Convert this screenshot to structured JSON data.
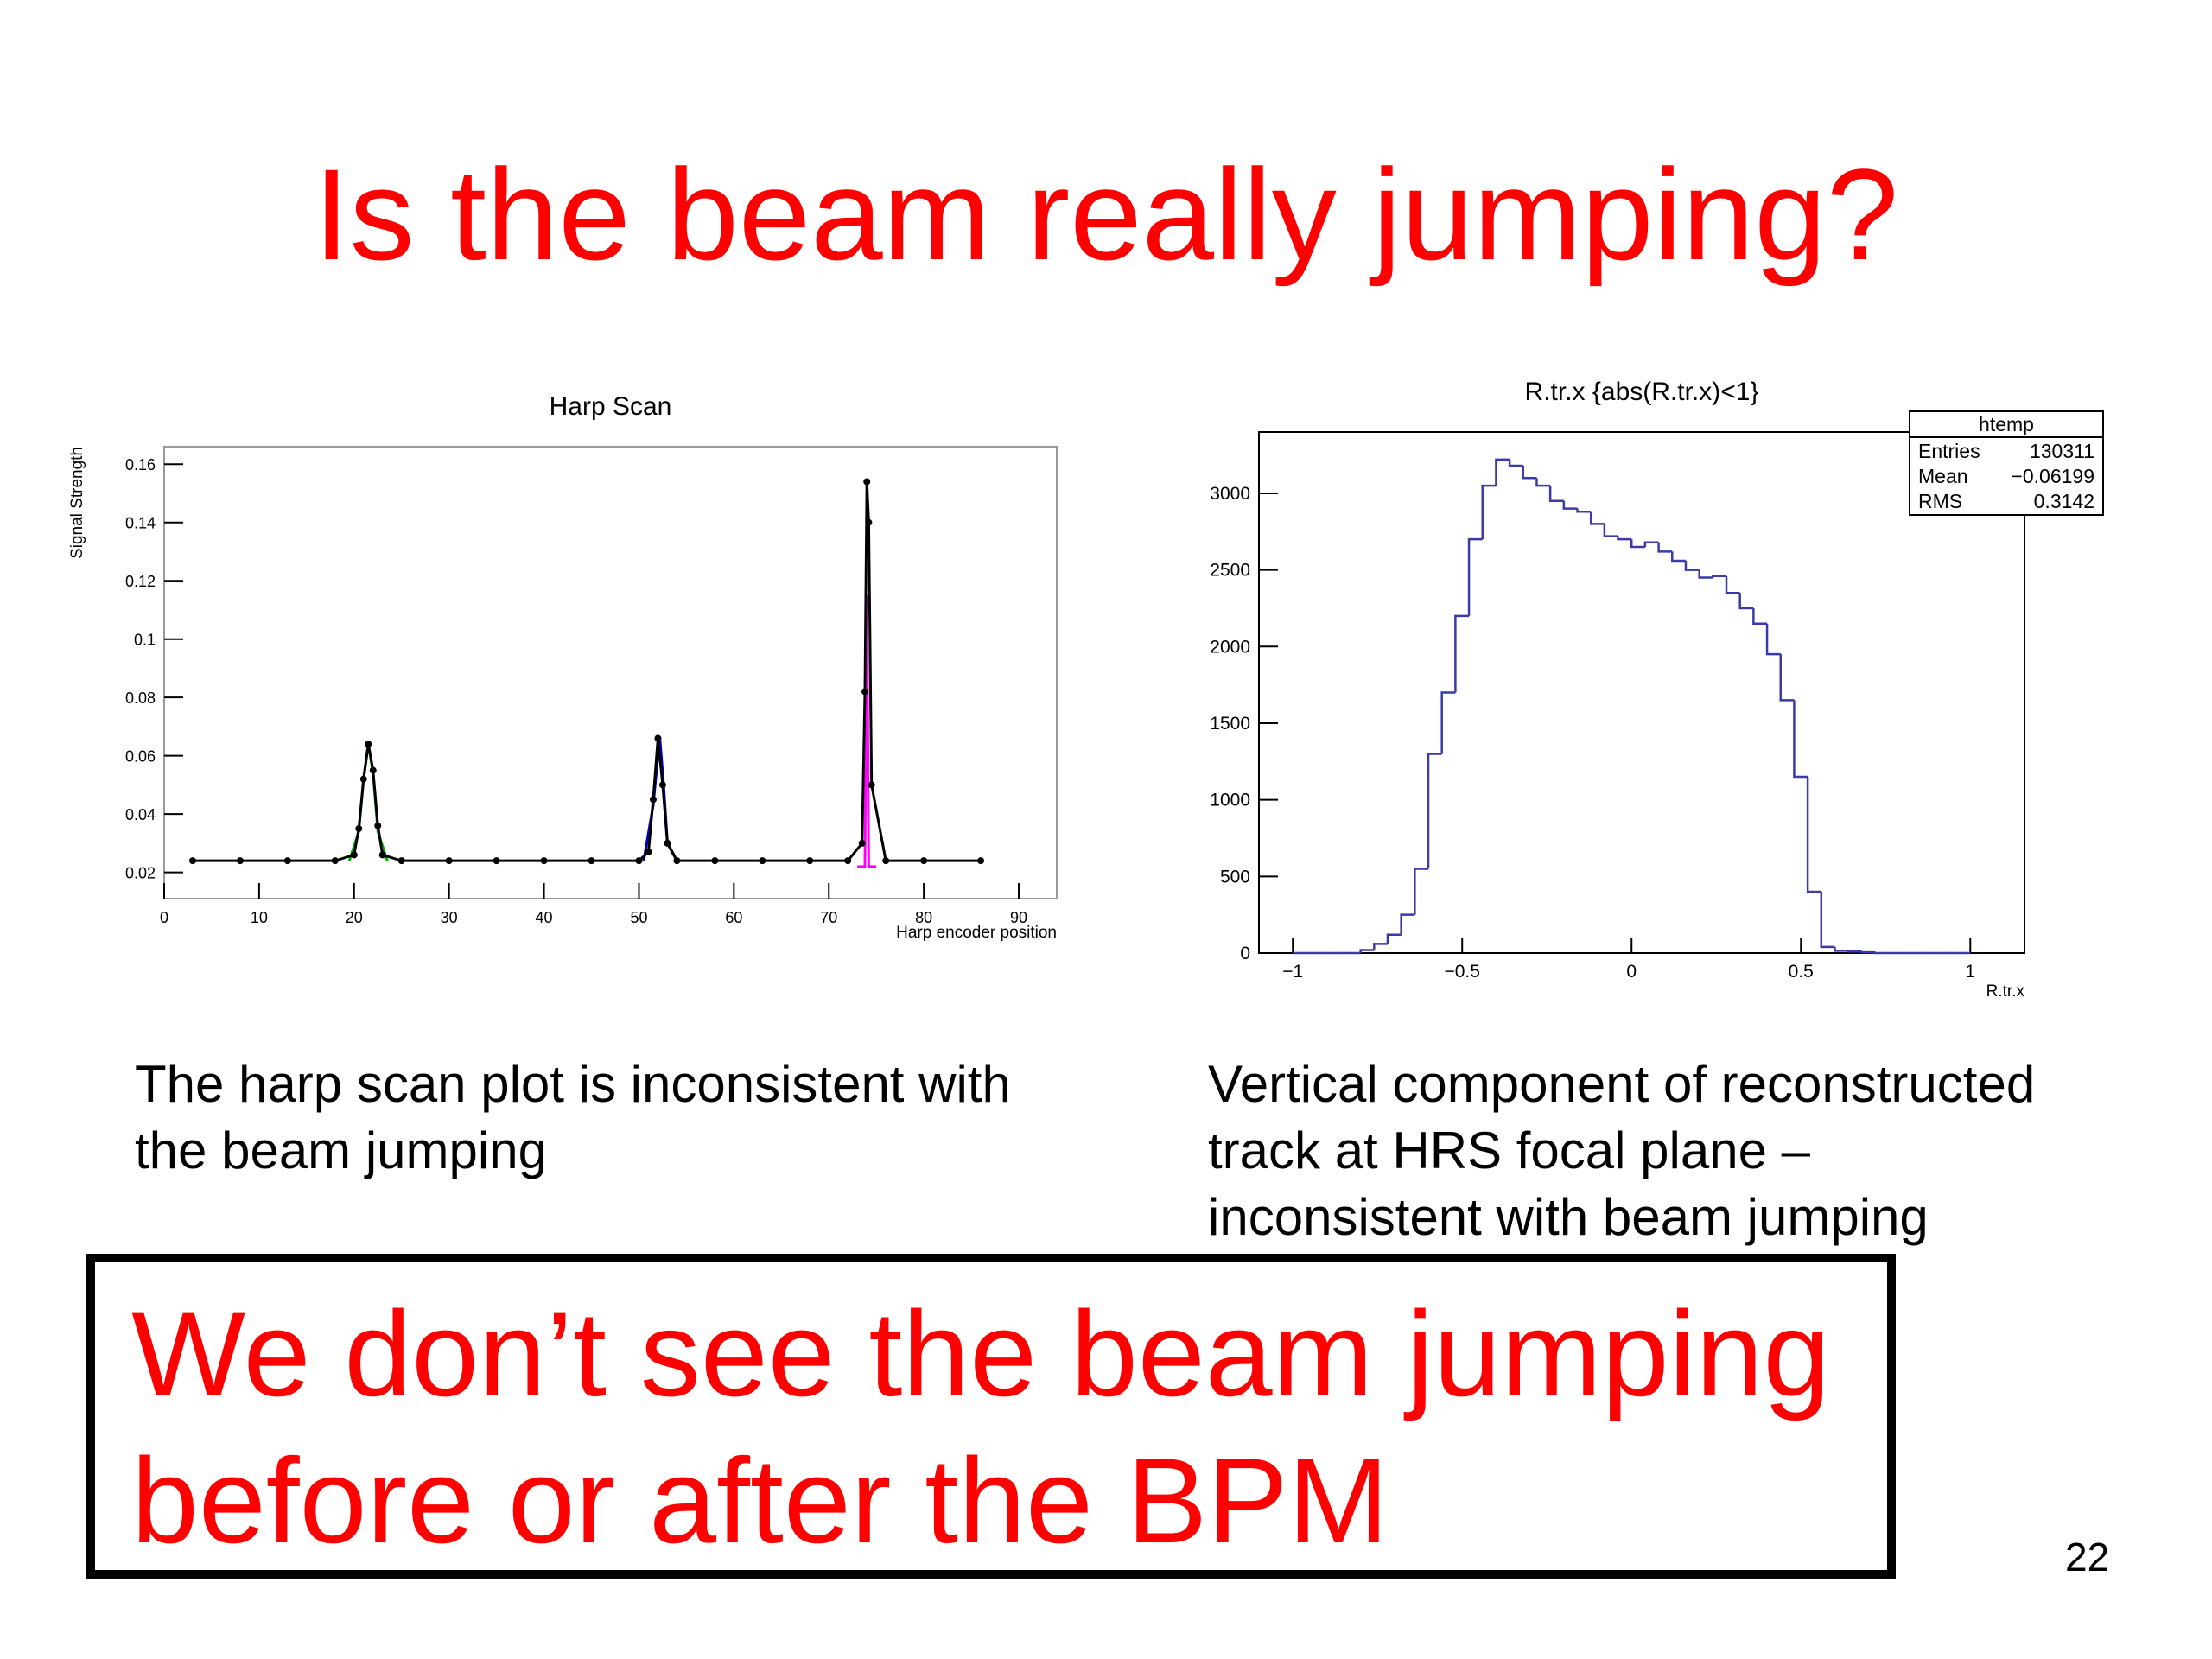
{
  "title": "Is the beam really jumping?",
  "chart_data": [
    {
      "type": "scatter",
      "title": "Harp Scan",
      "x_label": "Harp encoder position",
      "y_label": "Signal Strength",
      "xlim": [
        0,
        94
      ],
      "ylim": [
        0.011,
        0.166
      ],
      "xticks": [
        0,
        10,
        20,
        30,
        40,
        50,
        60,
        70,
        80,
        90
      ],
      "yticks": [
        0.02,
        0.04,
        0.06,
        0.08,
        0.1,
        0.12,
        0.14,
        0.16
      ],
      "grid": false,
      "series": [
        {
          "color": "#00b000",
          "x": [
            19.5,
            20.5,
            21,
            21.5,
            22,
            22.5,
            23.5
          ],
          "values": [
            0.024,
            0.034,
            0.052,
            0.064,
            0.054,
            0.034,
            0.024
          ]
        },
        {
          "color": "#0000c0",
          "x": [
            50.5,
            51.5,
            52,
            52.2,
            52.6,
            53,
            54
          ],
          "values": [
            0.024,
            0.043,
            0.06,
            0.066,
            0.05,
            0.03,
            0.024
          ]
        },
        {
          "color": "#ff00ff",
          "x": [
            73,
            73.8,
            74,
            74.2,
            75
          ],
          "values": [
            0.022,
            0.022,
            0.115,
            0.022,
            0.022
          ]
        },
        {
          "color": "#000000",
          "x": [
            3,
            8,
            13,
            18,
            20,
            20.5,
            21,
            21.5,
            22,
            22.5,
            23,
            25,
            30,
            35,
            40,
            45,
            50,
            51,
            51.5,
            52,
            52.5,
            53,
            54,
            58,
            63,
            68,
            72,
            73.5,
            73.8,
            74,
            74.2,
            74.5,
            76,
            80,
            86
          ],
          "values": [
            0.024,
            0.024,
            0.024,
            0.024,
            0.026,
            0.035,
            0.052,
            0.064,
            0.055,
            0.036,
            0.026,
            0.024,
            0.024,
            0.024,
            0.024,
            0.024,
            0.024,
            0.027,
            0.045,
            0.066,
            0.05,
            0.03,
            0.024,
            0.024,
            0.024,
            0.024,
            0.024,
            0.03,
            0.082,
            0.154,
            0.14,
            0.05,
            0.024,
            0.024,
            0.024
          ]
        }
      ]
    },
    {
      "type": "histogram",
      "title": "R.tr.x {abs(R.tr.x)<1}",
      "x_label": "R.tr.x",
      "color": "#3a3aa8",
      "xlim": [
        -1.1,
        1.16
      ],
      "ylim": [
        0,
        3400
      ],
      "xticks": [
        {
          "value": -1,
          "label": "−1"
        },
        {
          "value": -0.5,
          "label": "−0.5"
        },
        0,
        0.5,
        1
      ],
      "yticks": [
        0,
        500,
        1000,
        1500,
        2000,
        2500,
        3000
      ],
      "bins": [
        -1,
        -0.96,
        -0.92,
        -0.88,
        -0.84,
        -0.8,
        -0.76,
        -0.72,
        -0.68,
        -0.64,
        -0.6,
        -0.56,
        -0.52,
        -0.48,
        -0.44,
        -0.4,
        -0.36,
        -0.32,
        -0.28,
        -0.24,
        -0.2,
        -0.16,
        -0.12,
        -0.08,
        -0.04,
        0,
        0.04,
        0.08,
        0.12,
        0.16,
        0.2,
        0.24,
        0.28,
        0.32,
        0.36,
        0.4,
        0.44,
        0.48,
        0.52,
        0.56,
        0.6,
        0.64,
        0.68,
        0.72,
        0.76,
        0.8,
        0.84,
        0.88,
        0.92,
        0.96,
        1
      ],
      "values": [
        0,
        0,
        0,
        0,
        0,
        20,
        60,
        120,
        250,
        550,
        1300,
        1700,
        2200,
        2700,
        3050,
        3220,
        3180,
        3100,
        3050,
        2950,
        2900,
        2880,
        2800,
        2720,
        2700,
        2650,
        2680,
        2620,
        2560,
        2500,
        2450,
        2460,
        2350,
        2250,
        2150,
        1950,
        1650,
        1150,
        400,
        40,
        15,
        10,
        5,
        0,
        0,
        0,
        0,
        0,
        0,
        0
      ],
      "stats": {
        "title": "htemp",
        "rows": [
          [
            "Entries",
            "130311"
          ],
          [
            "Mean",
            "−0.06199"
          ],
          [
            "RMS",
            "0.3142"
          ]
        ]
      }
    }
  ],
  "captions": [
    [
      "The harp scan plot is inconsistent with",
      "the beam jumping"
    ],
    [
      "Vertical component of reconstructed",
      "track at HRS focal plane –",
      "inconsistent with beam jumping"
    ]
  ],
  "conclusion": [
    "We don’t see the beam jumping",
    "before or after the BPM"
  ],
  "page_number": "22"
}
